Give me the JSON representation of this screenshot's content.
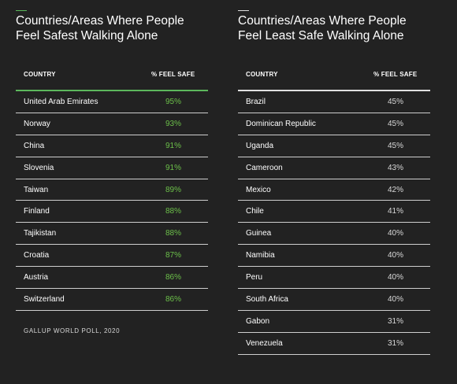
{
  "colors": {
    "background": "#222222",
    "safe_accent": "#5cb85c",
    "unsafe_accent": "#e0e0e0",
    "safe_value": "#6cc04a",
    "unsafe_value": "#d8d8d8"
  },
  "chart_data": [
    {
      "type": "table",
      "title": "Countries/Areas Where People Feel Safest Walking Alone",
      "columns": [
        "COUNTRY",
        "% FEEL SAFE"
      ],
      "rows": [
        {
          "country": "United Arab Emirates",
          "value": "95%"
        },
        {
          "country": "Norway",
          "value": "93%"
        },
        {
          "country": "China",
          "value": "91%"
        },
        {
          "country": "Slovenia",
          "value": "91%"
        },
        {
          "country": "Taiwan",
          "value": "89%"
        },
        {
          "country": "Finland",
          "value": "88%"
        },
        {
          "country": "Tajikistan",
          "value": "88%"
        },
        {
          "country": "Croatia",
          "value": "87%"
        },
        {
          "country": "Austria",
          "value": "86%"
        },
        {
          "country": "Switzerland",
          "value": "86%"
        }
      ],
      "source": "GALLUP WORLD POLL, 2020"
    },
    {
      "type": "table",
      "title": "Countries/Areas Where People Feel Least Safe Walking Alone",
      "columns": [
        "COUNTRY",
        "% FEEL SAFE"
      ],
      "rows": [
        {
          "country": "Brazil",
          "value": "45%"
        },
        {
          "country": "Dominican Republic",
          "value": "45%"
        },
        {
          "country": "Uganda",
          "value": "45%"
        },
        {
          "country": "Cameroon",
          "value": "43%"
        },
        {
          "country": "Mexico",
          "value": "42%"
        },
        {
          "country": "Chile",
          "value": "41%"
        },
        {
          "country": "Guinea",
          "value": "40%"
        },
        {
          "country": "Namibia",
          "value": "40%"
        },
        {
          "country": "Peru",
          "value": "40%"
        },
        {
          "country": "South Africa",
          "value": "40%"
        },
        {
          "country": "Gabon",
          "value": "31%"
        },
        {
          "country": "Venezuela",
          "value": "31%"
        }
      ]
    }
  ]
}
